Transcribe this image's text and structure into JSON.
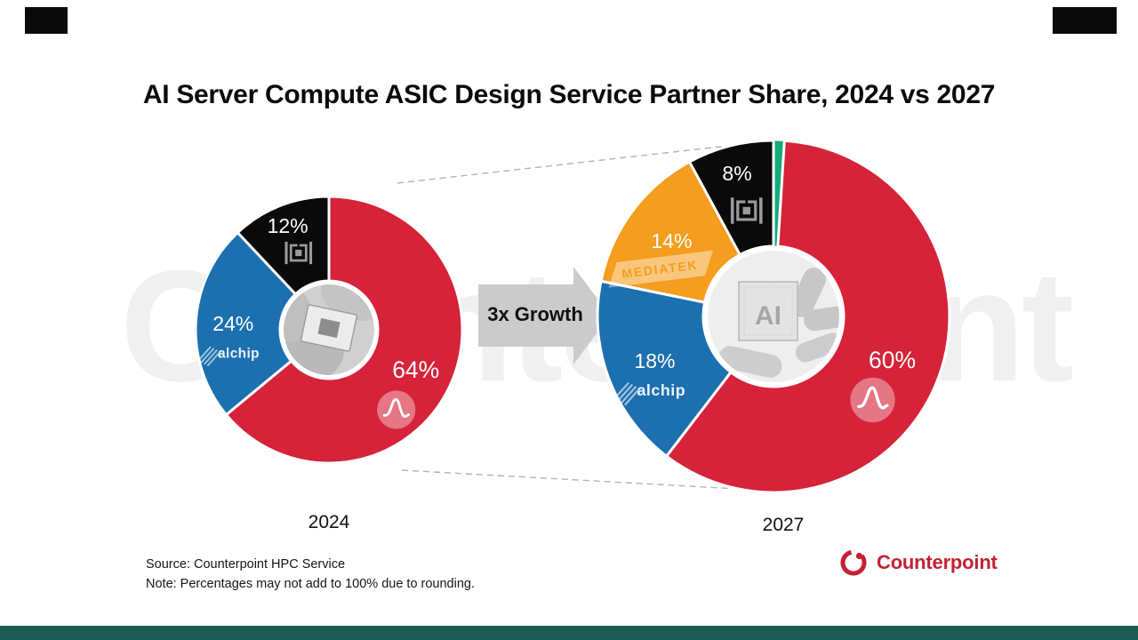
{
  "title": "AI Server Compute ASIC Design Service Partner Share, 2024 vs 2027",
  "arrow": {
    "label": "3x Growth"
  },
  "watermark": {
    "text": "Counterpoint"
  },
  "footnote": {
    "source": "Source: Counterpoint HPC Service",
    "note": "Note: Percentages may not add to 100% due to rounding."
  },
  "brand": {
    "name": "Counterpoint",
    "color": "#C32136"
  },
  "colors": {
    "broadcom_red": "#D62339",
    "alchip_blue": "#1C70B0",
    "mediatek_orange": "#F49D1E",
    "guc_black": "#0A0A0A",
    "others_green": "#17A97B",
    "arrow_gray": "#CBCBCB",
    "footer_bar_teal": "#1D5A52",
    "brand_red": "#C32136"
  },
  "chart_data": [
    {
      "type": "pie",
      "title": "2024",
      "unit": "%",
      "legend": false,
      "center_image": "hand-holding-chip-photo",
      "segments": [
        {
          "label": "Broadcom",
          "value": 64,
          "color": "#D62339",
          "logo": "broadcom"
        },
        {
          "label": "Alchip",
          "value": 24,
          "color": "#1C70B0",
          "logo": "alchip",
          "logo_text": "alchip"
        },
        {
          "label": "GUC",
          "value": 12,
          "color": "#0A0A0A",
          "logo": "guc"
        }
      ]
    },
    {
      "type": "pie",
      "title": "2027",
      "unit": "%",
      "legend": false,
      "center_image": "robot-hand-ai-chip-photo",
      "center_label": "AI",
      "segments": [
        {
          "label": "Others",
          "value": 1,
          "color": "#17A97B",
          "logo": null
        },
        {
          "label": "Broadcom",
          "value": 60,
          "color": "#D62339",
          "logo": "broadcom"
        },
        {
          "label": "Alchip",
          "value": 18,
          "color": "#1C70B0",
          "logo": "alchip",
          "logo_text": "alchip"
        },
        {
          "label": "MediaTek",
          "value": 14,
          "color": "#F49D1E",
          "logo": "mediatek",
          "logo_text": "MEDIATEK"
        },
        {
          "label": "GUC",
          "value": 8,
          "color": "#0A0A0A",
          "logo": "guc"
        }
      ]
    }
  ]
}
